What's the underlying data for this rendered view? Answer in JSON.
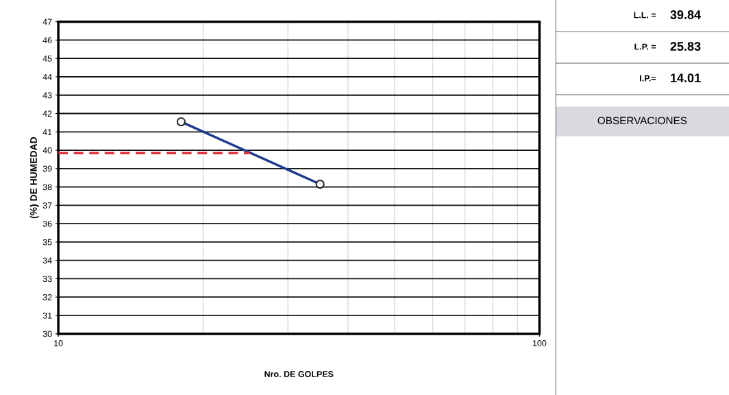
{
  "chart_data": [
    {
      "type": "line",
      "xlabel": "Nro. DE GOLPES",
      "ylabel": "(%) DE HUMEDAD",
      "log": "x",
      "xlim": [
        10,
        100
      ],
      "xticks": [
        10,
        100
      ],
      "ylim": [
        30,
        47
      ],
      "yticks": [
        30,
        31,
        32,
        33,
        34,
        35,
        36,
        37,
        38,
        39,
        40,
        41,
        42,
        43,
        44,
        45,
        46,
        47
      ],
      "grid": true,
      "series": [
        {
          "x": [
            18,
            35
          ],
          "values": [
            41.55,
            38.15
          ],
          "color": "#1f3b8f",
          "marker": "circle",
          "line_style": "solid"
        },
        {
          "x": [
            10,
            25
          ],
          "values": [
            39.84,
            39.84
          ],
          "color": "#e0303a",
          "marker": "none",
          "line_style": "dashed"
        }
      ]
    },
    {
      "type": "other",
      "annotations": [
        "L.L. =",
        "39.84",
        "L.P. =",
        "25.83",
        "I.P.=",
        "14.01",
        "OBSERVACIONES"
      ]
    }
  ]
}
